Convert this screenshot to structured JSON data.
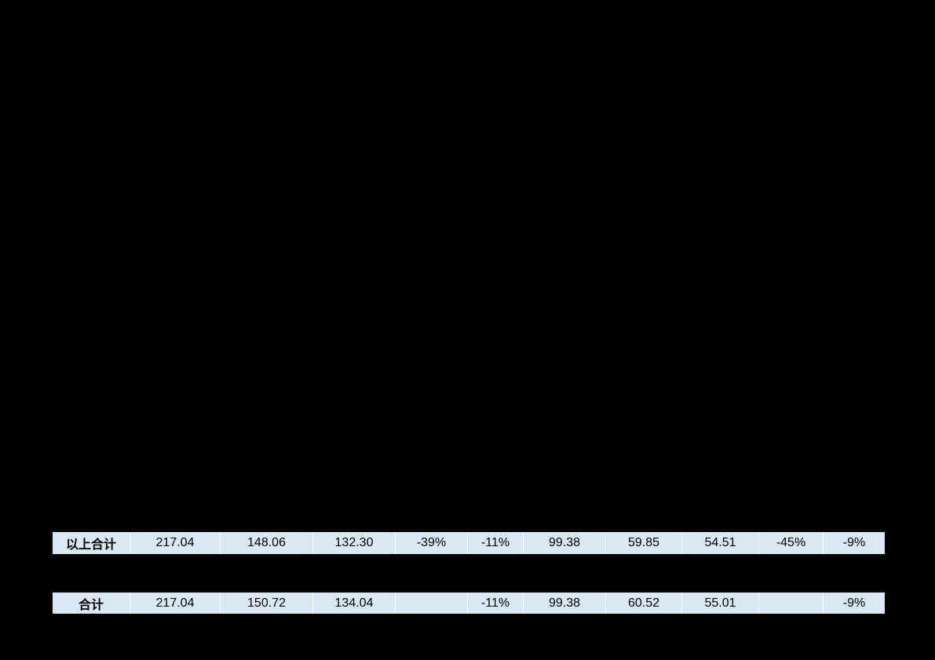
{
  "page": {
    "background_color": "#000000"
  },
  "table": {
    "row_highlight_color": "#dbe8f3",
    "separator_color": "#ffffff",
    "text_color": "#000000",
    "rows": [
      {
        "name": "subtotal-row",
        "cells": [
          "以上合计",
          "217.04",
          "148.06",
          "132.30",
          "-39%",
          "-11%",
          "99.38",
          "59.85",
          "54.51",
          "-45%",
          "-9%"
        ]
      },
      {
        "name": "grand-total-row",
        "cells": [
          "合计",
          "217.04",
          "150.72",
          "134.04",
          "",
          "-11%",
          "99.38",
          "60.52",
          "55.01",
          "",
          "-9%"
        ]
      }
    ]
  }
}
